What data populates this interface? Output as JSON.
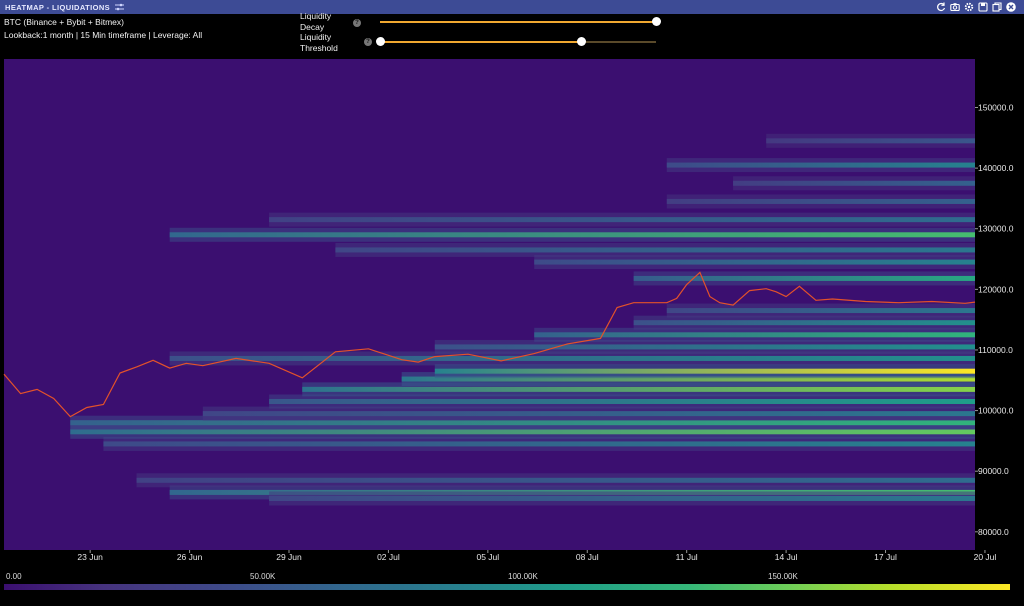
{
  "window": {
    "title": "HEATMAP - LIQUIDATIONS"
  },
  "icons": [
    "adjust-icon",
    "refresh-icon",
    "camera-icon",
    "settings-icon",
    "save-icon",
    "copy-icon",
    "close-icon"
  ],
  "info": {
    "line1": "BTC (Binance + Bybit + Bitmex)",
    "line2": "Lookback:1 month | 15 Min timeframe | Leverage: All"
  },
  "sliders": {
    "decay": {
      "label_line1": "Liquidity",
      "label_line2": "Decay",
      "help": "?",
      "value": 1.0
    },
    "threshold": {
      "label_line1": "Liquidity",
      "label_line2": "Threshold",
      "help": "?",
      "value": 0.73
    }
  },
  "colors": {
    "accent": "#f0a830",
    "titlebar": "#3d4b95",
    "price_line": "#e3522a"
  },
  "chart_data": {
    "type": "heatmap",
    "title": "",
    "x_ticks": [
      "23 Jun",
      "26 Jun",
      "29 Jun",
      "02 Jul",
      "05 Jul",
      "08 Jul",
      "11 Jul",
      "14 Jul",
      "17 Jul",
      "20 Jul"
    ],
    "y_ticks": [
      "80000.0",
      "90000.0",
      "100000.0",
      "110000.0",
      "120000.0",
      "130000.0",
      "140000.0",
      "150000.0"
    ],
    "x_range_days": [
      0,
      29.3
    ],
    "ylim": [
      77000,
      158000
    ],
    "colorbar": {
      "labels": [
        "0.00",
        "50.00K",
        "100.00K",
        "150.00K"
      ],
      "range": [
        0,
        190000
      ],
      "colormap": "viridis"
    },
    "price_series": {
      "name": "BTC price",
      "x_days": [
        0,
        0.5,
        1,
        1.5,
        2,
        2.5,
        3,
        3.5,
        4,
        4.5,
        5,
        5.5,
        6,
        7,
        8,
        9,
        10,
        11,
        12,
        12.5,
        13,
        14,
        15,
        16,
        17,
        18,
        18.5,
        19,
        20,
        20.3,
        20.6,
        21,
        21.3,
        21.6,
        22,
        22.5,
        23,
        23.3,
        23.6,
        24,
        24.5,
        25,
        26,
        27,
        28,
        29,
        29.3
      ],
      "price": [
        106000,
        102800,
        103500,
        102000,
        99000,
        100500,
        101000,
        106200,
        107200,
        108300,
        107000,
        107800,
        107400,
        108600,
        107800,
        105400,
        109700,
        110200,
        108400,
        108000,
        108900,
        109300,
        108200,
        109400,
        111000,
        111900,
        117000,
        117800,
        117800,
        118500,
        120800,
        122800,
        118800,
        117800,
        117400,
        119800,
        120100,
        119600,
        118800,
        120500,
        118200,
        118400,
        118000,
        117800,
        118000,
        117700,
        117900
      ]
    },
    "bands": [
      {
        "y": 86500,
        "start_day": 5,
        "intensity": 0.75
      },
      {
        "y": 85500,
        "start_day": 8,
        "intensity": 0.45
      },
      {
        "y": 88500,
        "start_day": 4,
        "intensity": 0.4
      },
      {
        "y": 94500,
        "start_day": 3,
        "intensity": 0.5
      },
      {
        "y": 96500,
        "start_day": 2,
        "intensity": 0.8
      },
      {
        "y": 98000,
        "start_day": 2,
        "intensity": 0.7
      },
      {
        "y": 99500,
        "start_day": 6,
        "intensity": 0.45
      },
      {
        "y": 101500,
        "start_day": 8,
        "intensity": 0.6
      },
      {
        "y": 103500,
        "start_day": 9,
        "intensity": 0.85
      },
      {
        "y": 105200,
        "start_day": 12,
        "intensity": 0.9
      },
      {
        "y": 106500,
        "start_day": 13,
        "intensity": 1.0
      },
      {
        "y": 108600,
        "start_day": 5,
        "intensity": 0.55
      },
      {
        "y": 110500,
        "start_day": 13,
        "intensity": 0.55
      },
      {
        "y": 112500,
        "start_day": 16,
        "intensity": 0.7
      },
      {
        "y": 114500,
        "start_day": 19,
        "intensity": 0.55
      },
      {
        "y": 116500,
        "start_day": 20,
        "intensity": 0.45
      },
      {
        "y": 121800,
        "start_day": 19,
        "intensity": 0.65
      },
      {
        "y": 124500,
        "start_day": 16,
        "intensity": 0.5
      },
      {
        "y": 126500,
        "start_day": 10,
        "intensity": 0.45
      },
      {
        "y": 129000,
        "start_day": 5,
        "intensity": 0.75
      },
      {
        "y": 131500,
        "start_day": 8,
        "intensity": 0.4
      },
      {
        "y": 134500,
        "start_day": 20,
        "intensity": 0.35
      },
      {
        "y": 137500,
        "start_day": 22,
        "intensity": 0.35
      },
      {
        "y": 140500,
        "start_day": 20,
        "intensity": 0.5
      },
      {
        "y": 144500,
        "start_day": 23,
        "intensity": 0.3
      }
    ]
  }
}
